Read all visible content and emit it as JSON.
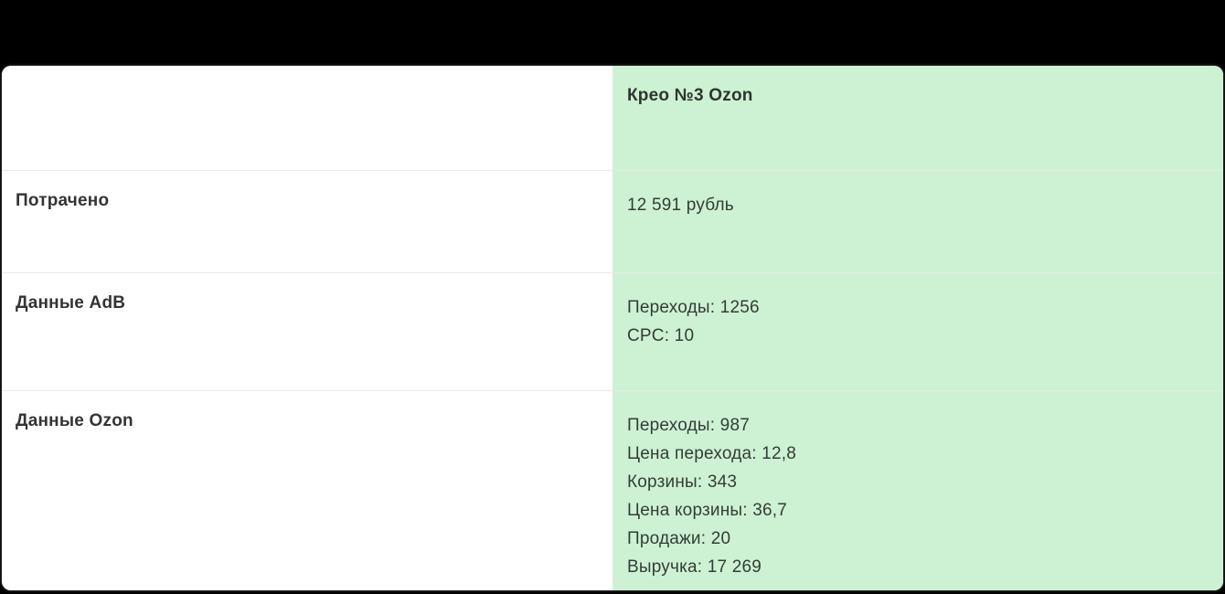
{
  "table": {
    "column_header": "Крео №3 Ozon",
    "rows": [
      {
        "label": "Потрачено",
        "lines": [
          "12 591 рубль"
        ]
      },
      {
        "label": "Данные AdB",
        "lines": [
          "Переходы: 1256",
          "CPC: 10"
        ]
      },
      {
        "label": "Данные Ozon",
        "lines": [
          "Переходы: 987",
          "Цена перехода: 12,8",
          "Корзины: 343",
          "Цена корзины: 36,7",
          "Продажи: 20",
          "Выручка: 17 269"
        ]
      }
    ]
  },
  "colors": {
    "highlight_green": "#ccf2d3",
    "text_dark": "#343434",
    "card_background": "#ffffff",
    "row_border": "#e4e9e5",
    "page_background": "#000000"
  }
}
